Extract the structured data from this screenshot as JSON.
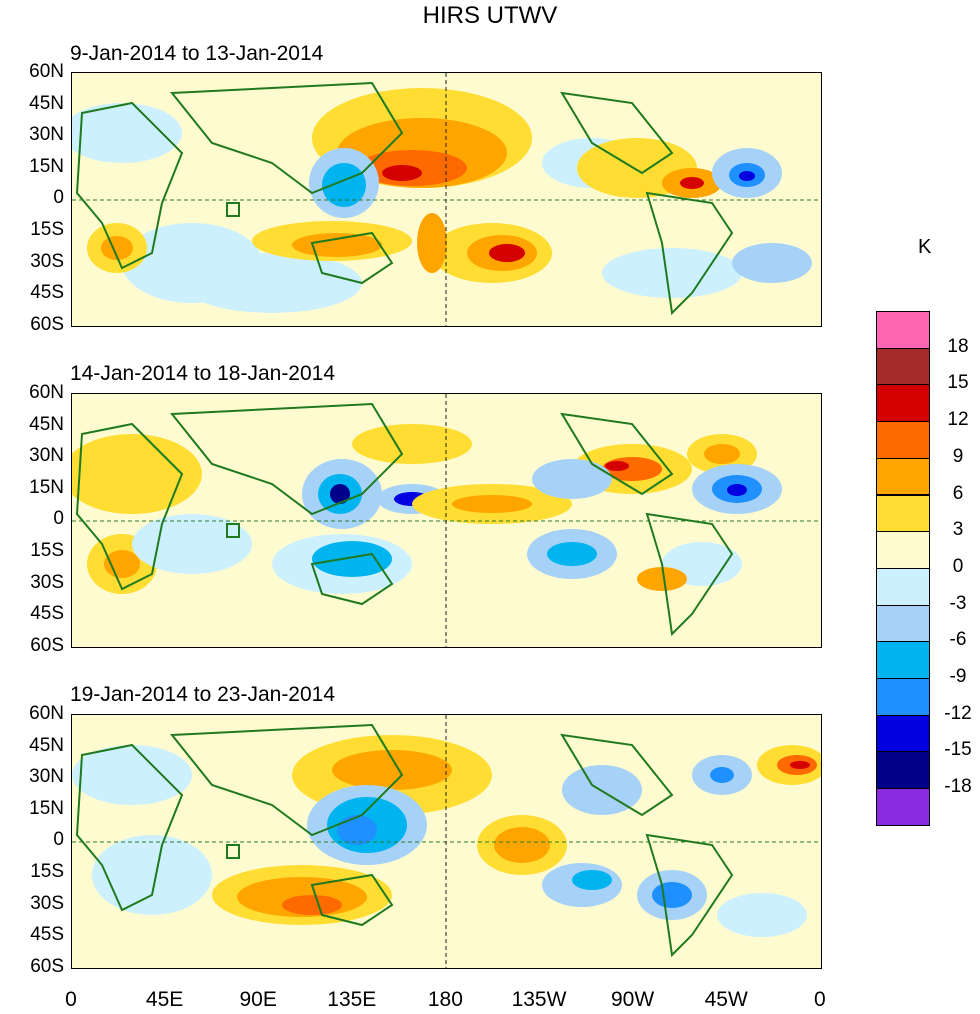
{
  "title": "HIRS UTWV",
  "panels": [
    {
      "label": "9-Jan-2014 to 13-Jan-2014"
    },
    {
      "label": "14-Jan-2014 to 18-Jan-2014"
    },
    {
      "label": "19-Jan-2014 to 23-Jan-2014"
    }
  ],
  "lat_labels": [
    "60N",
    "45N",
    "30N",
    "15N",
    "0",
    "15S",
    "30S",
    "45S",
    "60S"
  ],
  "lon_labels": [
    "0",
    "45E",
    "90E",
    "135E",
    "180",
    "135W",
    "90W",
    "45W",
    "0"
  ],
  "colorbar": {
    "unit": "K",
    "colors": [
      "#ff66b2",
      "#a52a2a",
      "#d40000",
      "#ff6a00",
      "#ffa500",
      "#ffdd33",
      "#fffbd0",
      "#cdf0ff",
      "#a7d2f7",
      "#00b4f0",
      "#1e90ff",
      "#0000e0",
      "#00008b",
      "#8a2be2"
    ],
    "labels": [
      "18",
      "15",
      "12",
      "9",
      "6",
      "3",
      "0",
      "-3",
      "-6",
      "-9",
      "-12",
      "-15",
      "-18"
    ]
  }
}
